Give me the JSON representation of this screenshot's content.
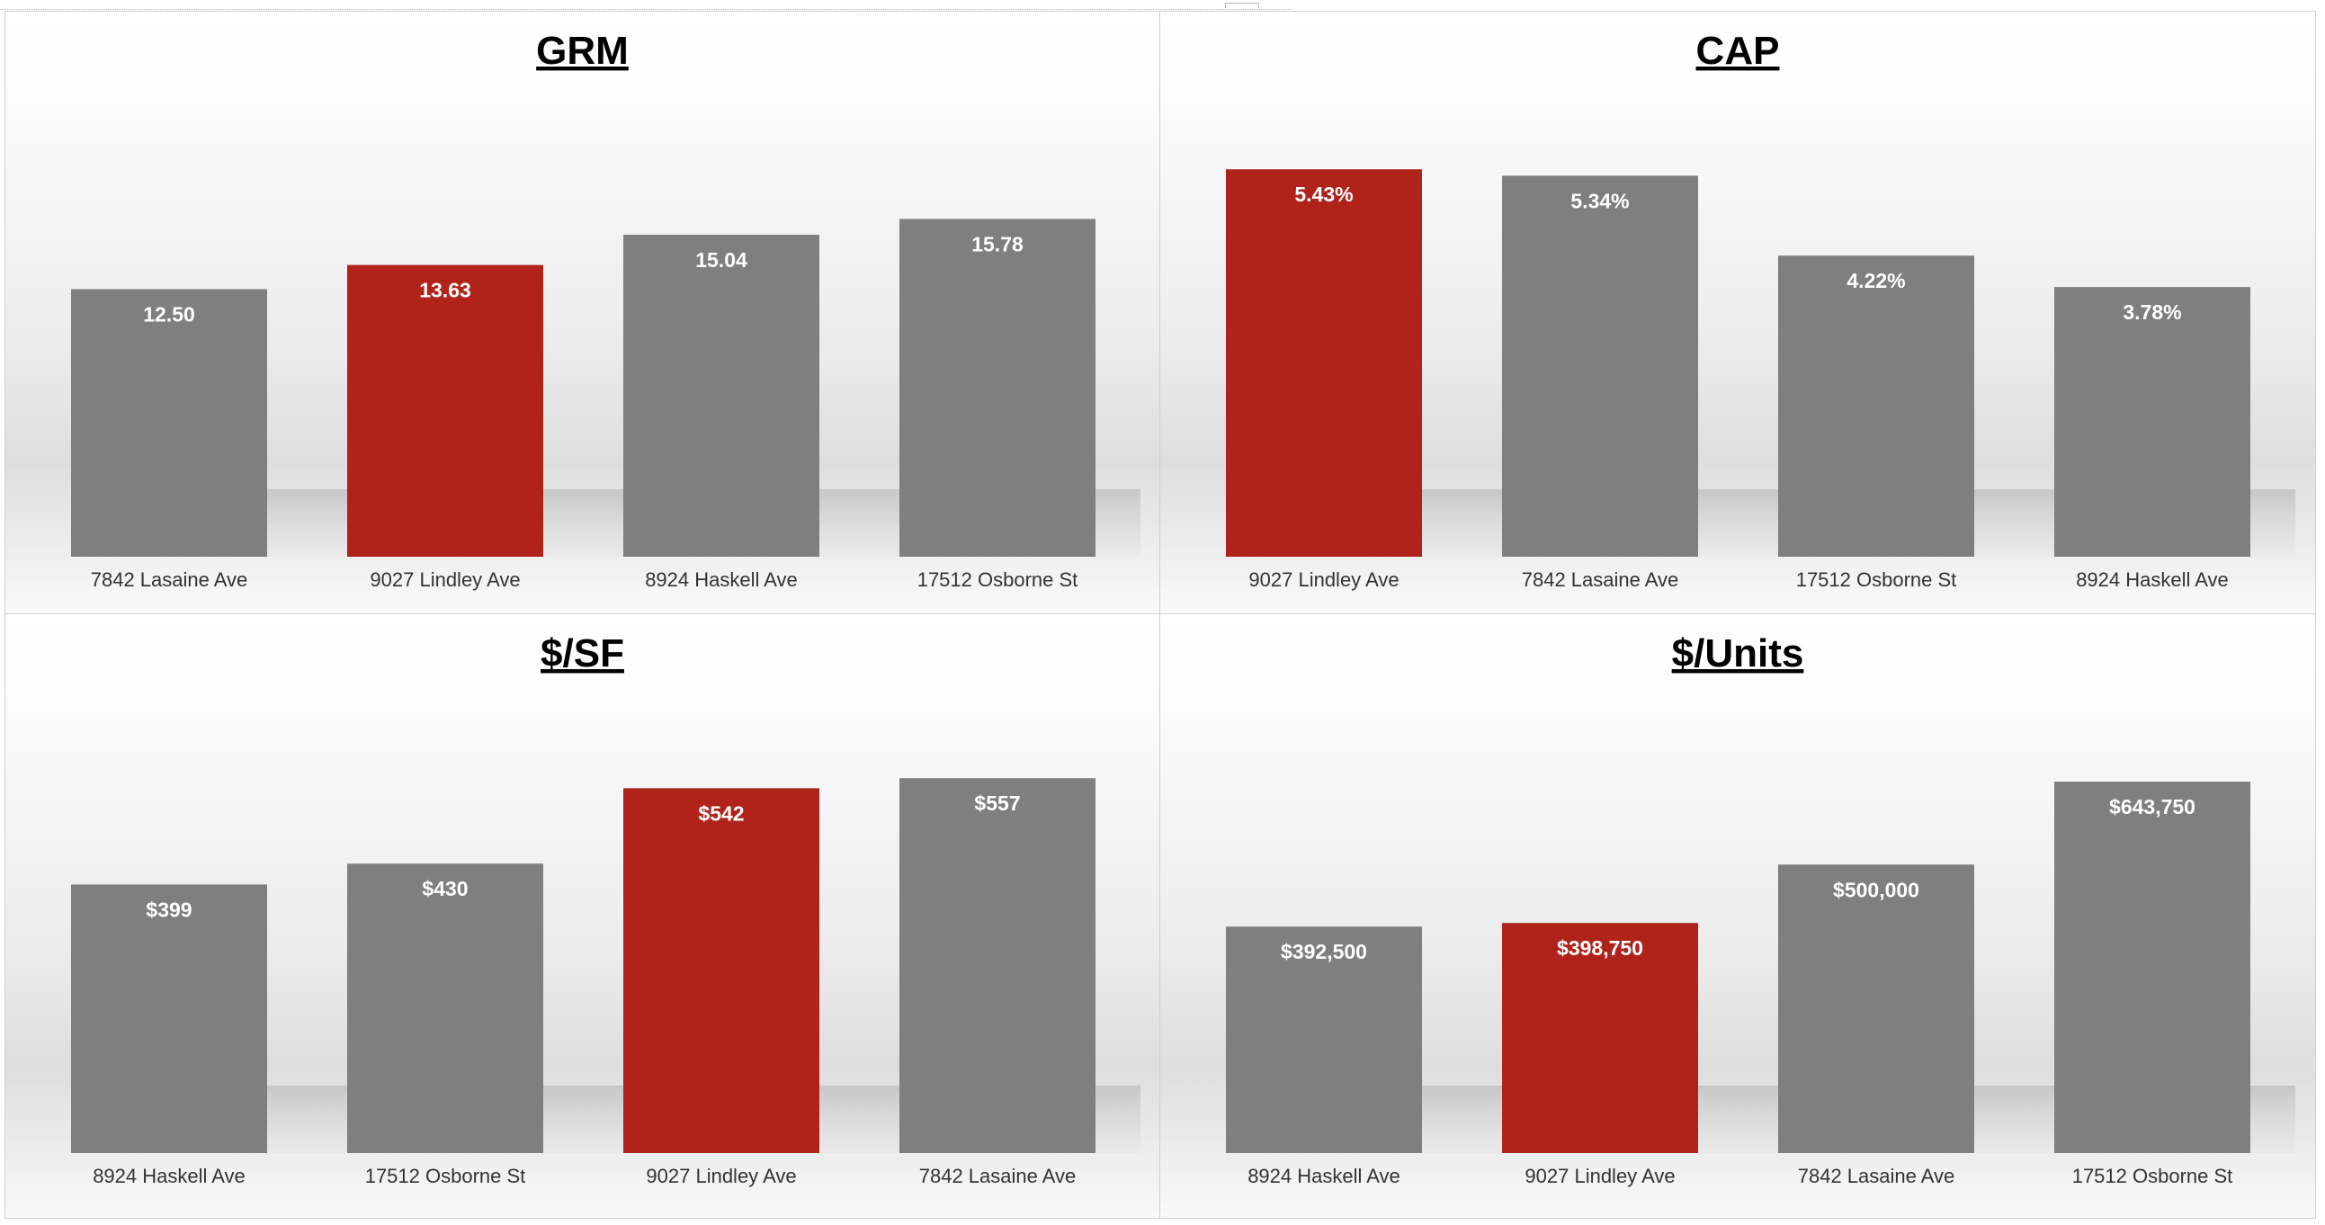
{
  "chart_data": [
    {
      "type": "bar",
      "title": "GRM",
      "categories": [
        "7842 Lasaine Ave",
        "9027 Lindley Ave",
        "8924 Haskell Ave",
        "17512 Osborne St"
      ],
      "values": [
        12.5,
        13.63,
        15.04,
        15.78
      ],
      "data_labels": [
        "12.50",
        "13.63",
        "15.04",
        "15.78"
      ],
      "highlight_index": 1,
      "ylim": [
        0,
        20
      ],
      "grid": false,
      "legend": "none"
    },
    {
      "type": "bar",
      "title": "CAP",
      "categories": [
        "9027 Lindley Ave",
        "7842 Lasaine Ave",
        "17512 Osborne St",
        "8924 Haskell Ave"
      ],
      "values": [
        5.43,
        5.34,
        4.22,
        3.78
      ],
      "data_labels": [
        "5.43%",
        "5.34%",
        "4.22%",
        "3.78%"
      ],
      "highlight_index": 0,
      "ylim": [
        0,
        6
      ],
      "grid": false,
      "legend": "none"
    },
    {
      "type": "bar",
      "title": "$/SF",
      "categories": [
        "8924 Haskell Ave",
        "17512 Osborne St",
        "9027 Lindley Ave",
        "7842 Lasaine Ave"
      ],
      "values": [
        399,
        430,
        542,
        557
      ],
      "data_labels": [
        "$399",
        "$430",
        "$542",
        "$557"
      ],
      "highlight_index": 2,
      "ylim": [
        0,
        600
      ],
      "grid": false,
      "legend": "none"
    },
    {
      "type": "bar",
      "title": "$/Units",
      "categories": [
        "8924 Haskell Ave",
        "9027 Lindley Ave",
        "7842 Lasaine Ave",
        "17512 Osborne St"
      ],
      "values": [
        392500,
        398750,
        500000,
        643750
      ],
      "data_labels": [
        "$392,500",
        "$398,750",
        "$500,000",
        "$643,750"
      ],
      "highlight_index": 1,
      "ylim": [
        0,
        700000
      ],
      "grid": false,
      "legend": "none"
    }
  ],
  "colors": {
    "bar": "#7f7f7f",
    "highlight": "#b0231a",
    "data_label": "#ffffff",
    "title": "#000000",
    "category_label": "#333333"
  }
}
